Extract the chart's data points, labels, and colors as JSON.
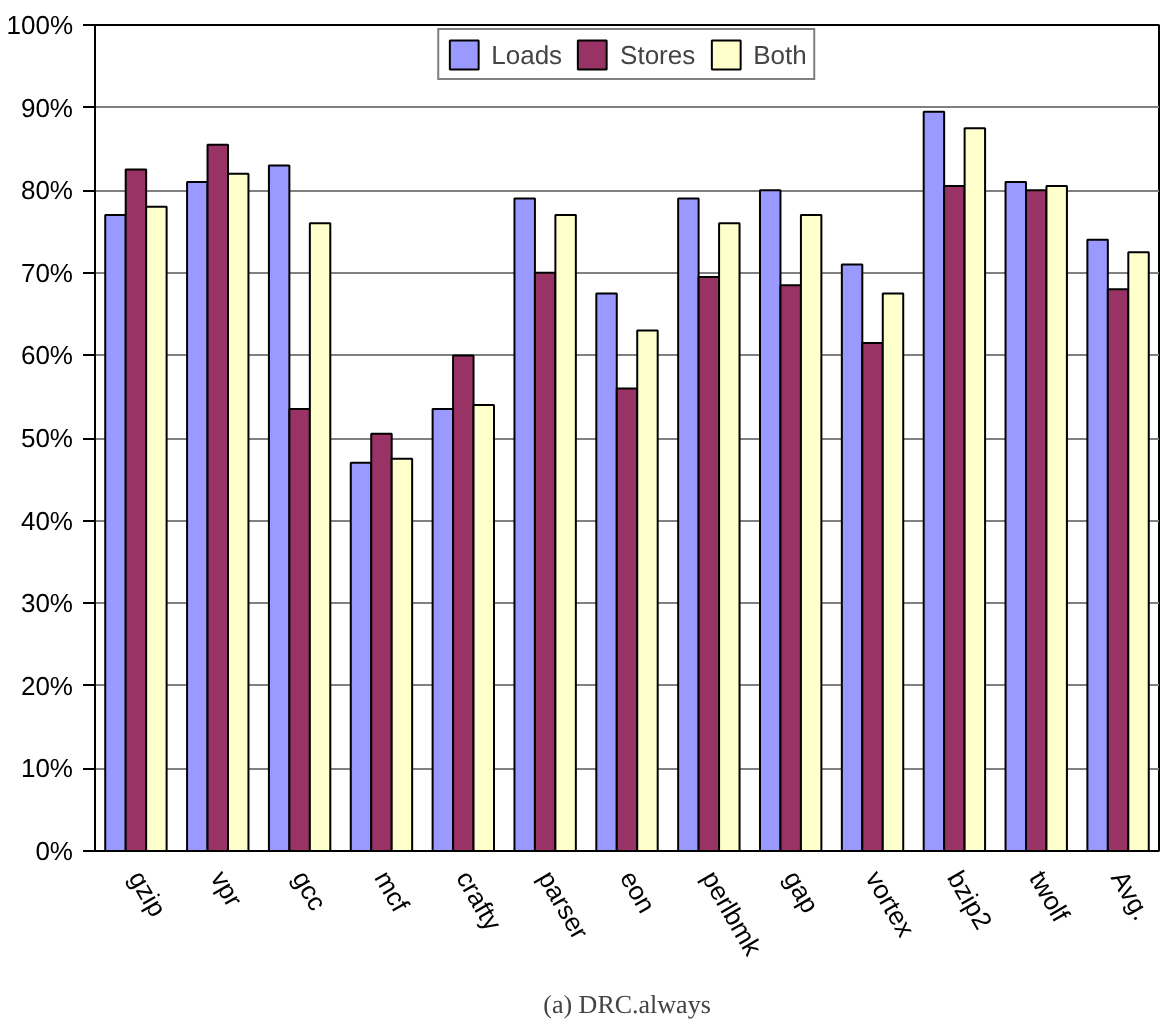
{
  "chart_data": {
    "type": "bar",
    "title": "(a) DRC.always",
    "categories": [
      "gzip",
      "vpr",
      "gcc",
      "mcf",
      "crafty",
      "parser",
      "eon",
      "perlbmk",
      "gap",
      "vortex",
      "bzip2",
      "twolf",
      "Avg."
    ],
    "series": [
      {
        "name": "Loads",
        "color": "#9999ff",
        "values": [
          77,
          81,
          83,
          47,
          53.5,
          79,
          67.5,
          79,
          80,
          71,
          89.5,
          81,
          74
        ]
      },
      {
        "name": "Stores",
        "color": "#993366",
        "values": [
          82.5,
          85.5,
          53.5,
          50.5,
          60,
          70,
          56,
          69.5,
          68.5,
          61.5,
          80.5,
          80,
          68
        ]
      },
      {
        "name": "Both",
        "color": "#ffffcc",
        "values": [
          78,
          82,
          76,
          47.5,
          54,
          77,
          63,
          76,
          77,
          67.5,
          87.5,
          80.5,
          72.5
        ]
      }
    ],
    "ylim": [
      0,
      100
    ],
    "yticks": [
      {
        "value": 0,
        "label": "0%"
      },
      {
        "value": 10,
        "label": "10%"
      },
      {
        "value": 20,
        "label": "20%"
      },
      {
        "value": 30,
        "label": "30%"
      },
      {
        "value": 40,
        "label": "40%"
      },
      {
        "value": 50,
        "label": "50%"
      },
      {
        "value": 60,
        "label": "60%"
      },
      {
        "value": 70,
        "label": "70%"
      },
      {
        "value": 80,
        "label": "80%"
      },
      {
        "value": 90,
        "label": "90%"
      },
      {
        "value": 100,
        "label": "100%"
      }
    ],
    "grid": "y",
    "legend": "top"
  }
}
